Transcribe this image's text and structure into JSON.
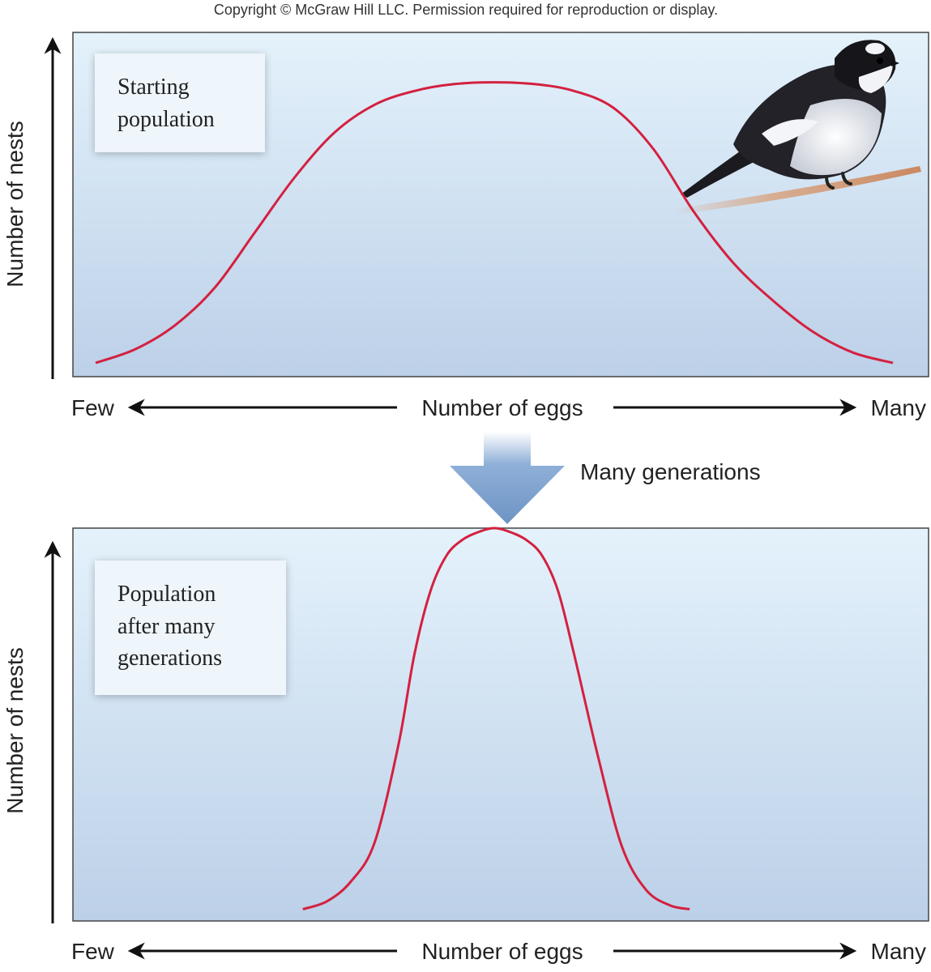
{
  "copyright": "Copyright © McGraw Hill LLC. Permission required for reproduction or display.",
  "transition": {
    "label": "Many generations"
  },
  "colors": {
    "curve": "#d4203f",
    "panel_top": "#e4f2fb",
    "panel_bottom": "#bcd0e8",
    "transition_arrow": "#6e94c4",
    "axis": "#111111",
    "text": "#222222"
  },
  "chart_data": [
    {
      "type": "line",
      "box_label_lines": [
        "Starting",
        "population"
      ],
      "xlabel": "Number of eggs",
      "ylabel": "Number of nests",
      "x_tick_labels": [
        "Few",
        "Many"
      ],
      "xlim": [
        0,
        1
      ],
      "ylim": [
        0,
        1
      ],
      "series": [
        {
          "x": [
            0,
            0.05,
            0.1,
            0.15,
            0.2,
            0.25,
            0.3,
            0.35,
            0.4,
            0.45,
            0.5,
            0.55,
            0.6,
            0.65,
            0.7,
            0.75,
            0.8,
            0.85,
            0.9,
            0.95,
            1
          ],
          "y": [
            0.04,
            0.08,
            0.15,
            0.26,
            0.42,
            0.58,
            0.71,
            0.79,
            0.83,
            0.85,
            0.855,
            0.85,
            0.83,
            0.78,
            0.66,
            0.48,
            0.33,
            0.22,
            0.13,
            0.07,
            0.04
          ]
        }
      ],
      "illustration": "bird-on-branch"
    },
    {
      "type": "line",
      "box_label_lines": [
        "Population",
        "after many",
        "generations"
      ],
      "xlabel": "Number of eggs",
      "ylabel": "Number of nests",
      "x_tick_labels": [
        "Few",
        "Many"
      ],
      "xlim": [
        0,
        1
      ],
      "ylim": [
        0,
        1
      ],
      "series": [
        {
          "x": [
            0.26,
            0.29,
            0.32,
            0.35,
            0.38,
            0.4,
            0.42,
            0.44,
            0.46,
            0.48,
            0.5,
            0.52,
            0.54,
            0.56,
            0.58,
            0.6,
            0.63,
            0.66,
            0.69,
            0.72,
            0.745
          ],
          "y": [
            0.03,
            0.05,
            0.1,
            0.2,
            0.45,
            0.68,
            0.84,
            0.93,
            0.97,
            0.99,
            1.0,
            0.99,
            0.97,
            0.93,
            0.84,
            0.68,
            0.42,
            0.19,
            0.08,
            0.04,
            0.03
          ]
        }
      ]
    }
  ]
}
